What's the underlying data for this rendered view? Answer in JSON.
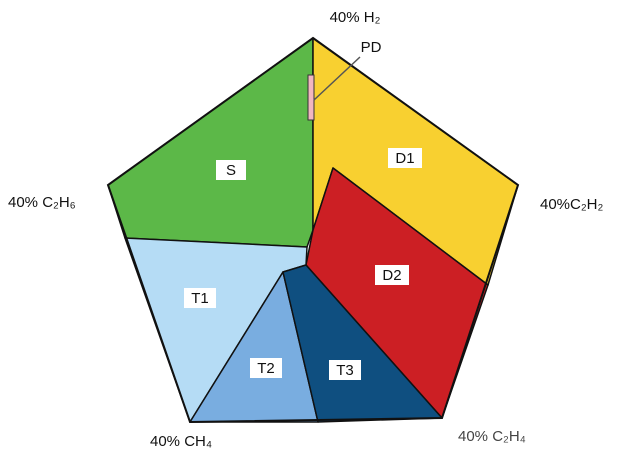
{
  "vertices": {
    "top": "40% H₂",
    "left": "40% C₂H₆",
    "right": "40%C₂H₂",
    "bottom_left": "40% CH₄",
    "bottom_right": "40% C₂H₄"
  },
  "zones": {
    "PD": "PD",
    "S": "S",
    "D1": "D1",
    "D2": "D2",
    "T1": "T1",
    "T2": "T2",
    "T3": "T3"
  }
}
